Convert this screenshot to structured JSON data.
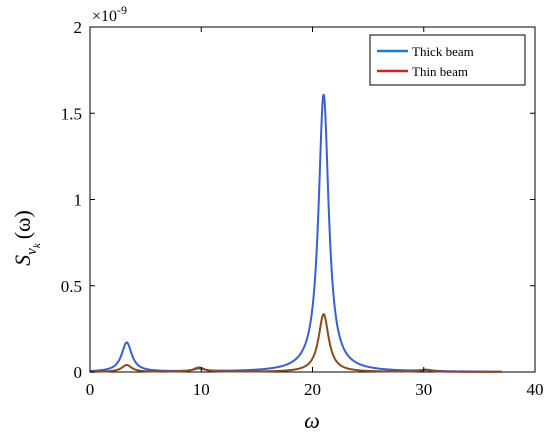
{
  "chart_data": {
    "type": "line",
    "title": "",
    "xlabel": "ω",
    "ylabel_main": "S",
    "ylabel_sub": "v",
    "ylabel_subsub": "k",
    "ylabel_arg": "(ω)",
    "y_multiplier": "×10",
    "y_multiplier_exp": "-9",
    "xlim": [
      0,
      40
    ],
    "ylim": [
      0,
      2
    ],
    "x_ticks": [
      "0",
      "10",
      "20",
      "30",
      "40"
    ],
    "y_ticks": [
      "0",
      "0.5",
      "1",
      "1.5",
      "2"
    ],
    "grid": false,
    "legend_position": "top-right",
    "series": [
      {
        "name": "Thick beam",
        "color": "#3a5fd0",
        "legend_color": "#1a7fc0",
        "peaks": [
          {
            "x": 3.3,
            "y": 0.17
          },
          {
            "x": 9.8,
            "y": 0.015
          },
          {
            "x": 21.0,
            "y": 1.61
          },
          {
            "x": 30.2,
            "y": 0.008
          }
        ]
      },
      {
        "name": "Thin beam",
        "color": "#8a4a1a",
        "legend_color": "#d42020",
        "peaks": [
          {
            "x": 3.3,
            "y": 0.04
          },
          {
            "x": 9.8,
            "y": 0.025
          },
          {
            "x": 21.0,
            "y": 0.335
          },
          {
            "x": 30.2,
            "y": 0.01
          }
        ]
      }
    ]
  }
}
